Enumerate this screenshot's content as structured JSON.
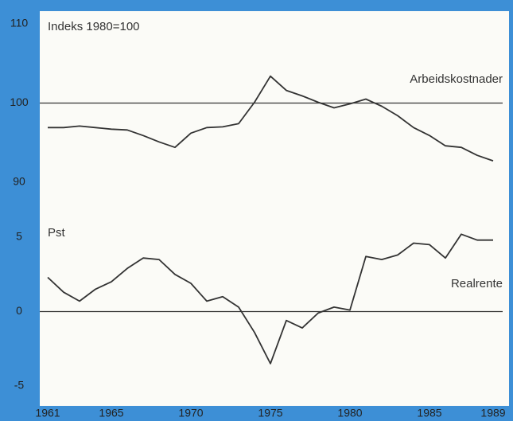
{
  "chart_data": [
    {
      "type": "line",
      "ylabel": "Indeks 1980=100",
      "x": [
        1961,
        1962,
        1963,
        1964,
        1965,
        1966,
        1967,
        1968,
        1969,
        1970,
        1971,
        1972,
        1973,
        1974,
        1975,
        1976,
        1977,
        1978,
        1979,
        1980,
        1981,
        1982,
        1983,
        1984,
        1985,
        1986,
        1987,
        1988,
        1989
      ],
      "series": [
        {
          "name": "Arbeidskostnader",
          "color": "#333333",
          "values": [
            96.9,
            96.9,
            97.1,
            96.9,
            96.7,
            96.6,
            95.9,
            95.1,
            94.4,
            96.2,
            96.9,
            97.0,
            97.4,
            100.1,
            103.4,
            101.6,
            100.9,
            100.1,
            99.4,
            99.9,
            100.5,
            99.6,
            98.4,
            96.9,
            95.9,
            94.6,
            94.4,
            93.4,
            92.7
          ]
        }
      ],
      "xlim": [
        1960.5,
        1990.25
      ],
      "ylim": [
        90,
        110
      ],
      "yticks": [
        90,
        100,
        110
      ],
      "reference_line": 100
    },
    {
      "type": "line",
      "ylabel": "Pst",
      "x": [
        1961,
        1962,
        1963,
        1964,
        1965,
        1966,
        1967,
        1968,
        1969,
        1970,
        1971,
        1972,
        1973,
        1974,
        1975,
        1976,
        1977,
        1978,
        1979,
        1980,
        1981,
        1982,
        1983,
        1984,
        1985,
        1986,
        1987,
        1988,
        1989
      ],
      "series": [
        {
          "name": "Realrente",
          "color": "#333333",
          "values": [
            2.3,
            1.3,
            0.7,
            1.5,
            2.0,
            2.9,
            3.6,
            3.5,
            2.5,
            1.9,
            0.7,
            1.0,
            0.3,
            -1.4,
            -3.5,
            -0.6,
            -1.1,
            -0.1,
            0.3,
            0.1,
            3.7,
            3.5,
            3.8,
            4.6,
            4.5,
            3.6,
            5.2,
            4.8,
            4.8
          ]
        }
      ],
      "xlim": [
        1960.5,
        1990.25
      ],
      "xticks": [
        1961,
        1965,
        1970,
        1975,
        1980,
        1985,
        1989
      ],
      "ylim": [
        -5,
        5
      ],
      "yticks": [
        -5,
        0,
        5
      ],
      "reference_line": 0
    }
  ]
}
